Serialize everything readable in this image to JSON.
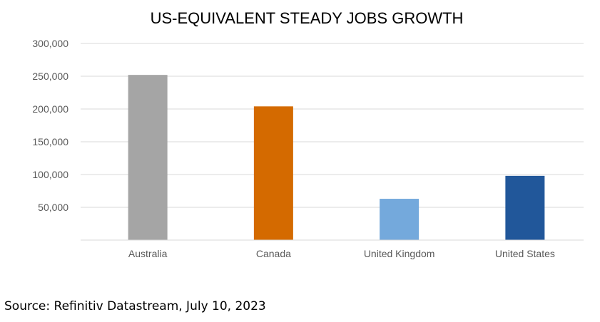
{
  "chart_data": {
    "type": "bar",
    "title": "US-EQUIVALENT STEADY JOBS GROWTH",
    "categories": [
      "Australia",
      "Canada",
      "United Kingdom",
      "United States"
    ],
    "values": [
      252000,
      204000,
      63000,
      98000
    ],
    "colors": [
      "#a5a5a5",
      "#d46a00",
      "#74a9dc",
      "#21579a"
    ],
    "ylim": [
      0,
      300000
    ],
    "yticks": [
      50000,
      100000,
      150000,
      200000,
      250000,
      300000
    ],
    "ytick_labels": [
      "50,000",
      "100,000",
      "150,000",
      "200,000",
      "250,000",
      "300,000"
    ],
    "xlabel": "",
    "ylabel": "",
    "grid": true,
    "gridline_color": "#d9d9d9"
  },
  "source": "Source: Refinitiv Datastream, July 10, 2023"
}
